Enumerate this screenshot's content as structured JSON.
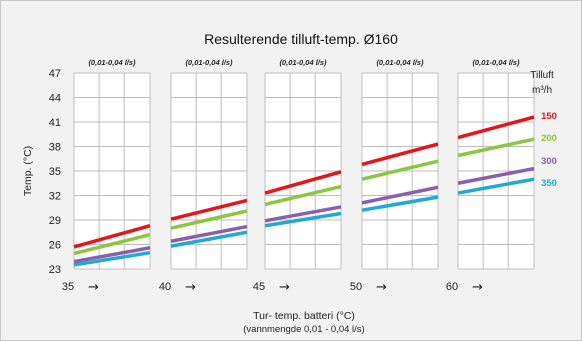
{
  "chart_data": {
    "type": "line",
    "title": "Resulterende tilluft-temp. Ø160",
    "ylabel": "Temp. (°C)",
    "xlabel": "Tur- temp. batteri (°C)",
    "xlabel_sub": "(vannmengde 0,01 - 0,04 l/s)",
    "ylim": [
      23,
      47
    ],
    "y_ticks": [
      23,
      26,
      29,
      32,
      35,
      38,
      41,
      44,
      47
    ],
    "grid": true,
    "legend": {
      "title_line1": "Tilluft",
      "title_line2": "m³/h",
      "placement": "right"
    },
    "panels": [
      {
        "supply_temp": "35",
        "flow_label": "(0,01-0,04 l/s)",
        "series": [
          {
            "name": "150",
            "color": "#e8141c",
            "values": [
              25.7,
              28.3
            ]
          },
          {
            "name": "200",
            "color": "#8cc540",
            "values": [
              24.9,
              27.2
            ]
          },
          {
            "name": "300",
            "color": "#8a5fae",
            "values": [
              23.9,
              25.6
            ]
          },
          {
            "name": "350",
            "color": "#21a9d4",
            "values": [
              23.5,
              25.0
            ]
          }
        ]
      },
      {
        "supply_temp": "40",
        "flow_label": "(0,01-0,04 l/s)",
        "series": [
          {
            "name": "150",
            "color": "#e8141c",
            "values": [
              29.1,
              31.4
            ]
          },
          {
            "name": "200",
            "color": "#8cc540",
            "values": [
              28.0,
              30.1
            ]
          },
          {
            "name": "300",
            "color": "#8a5fae",
            "values": [
              26.4,
              28.2
            ]
          },
          {
            "name": "350",
            "color": "#21a9d4",
            "values": [
              25.8,
              27.5
            ]
          }
        ]
      },
      {
        "supply_temp": "45",
        "flow_label": "(0,01-0,04 l/s)",
        "series": [
          {
            "name": "150",
            "color": "#e8141c",
            "values": [
              32.3,
              34.9
            ]
          },
          {
            "name": "200",
            "color": "#8cc540",
            "values": [
              30.9,
              33.1
            ]
          },
          {
            "name": "300",
            "color": "#8a5fae",
            "values": [
              28.9,
              30.6
            ]
          },
          {
            "name": "350",
            "color": "#21a9d4",
            "values": [
              28.3,
              29.8
            ]
          }
        ]
      },
      {
        "supply_temp": "50",
        "flow_label": "(0,01-0,04 l/s)",
        "series": [
          {
            "name": "150",
            "color": "#e8141c",
            "values": [
              35.8,
              38.3
            ]
          },
          {
            "name": "200",
            "color": "#8cc540",
            "values": [
              34.0,
              36.2
            ]
          },
          {
            "name": "300",
            "color": "#8a5fae",
            "values": [
              31.1,
              33.0
            ]
          },
          {
            "name": "350",
            "color": "#21a9d4",
            "values": [
              30.2,
              31.8
            ]
          }
        ]
      },
      {
        "supply_temp": "60",
        "flow_label": "(0,01-0,04 l/s)",
        "series": [
          {
            "name": "150",
            "color": "#e8141c",
            "values": [
              39.1,
              41.6
            ]
          },
          {
            "name": "200",
            "color": "#8cc540",
            "values": [
              36.9,
              38.9
            ]
          },
          {
            "name": "300",
            "color": "#8a5fae",
            "values": [
              33.5,
              35.3
            ]
          },
          {
            "name": "350",
            "color": "#21a9d4",
            "values": [
              32.3,
              34.0
            ]
          }
        ]
      }
    ]
  }
}
